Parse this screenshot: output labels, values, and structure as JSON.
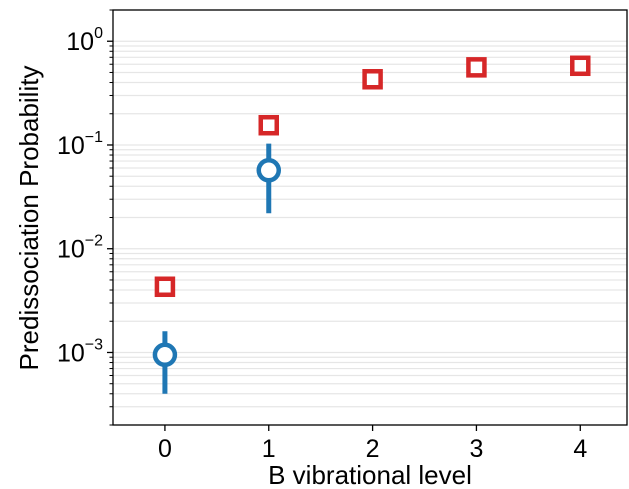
{
  "chart_data": {
    "type": "scatter",
    "title": "",
    "xlabel": "B vibrational level",
    "ylabel": "Predissociation Probability",
    "x_ticks": [
      "0",
      "1",
      "2",
      "3",
      "4"
    ],
    "xlim": [
      -0.5,
      4.45
    ],
    "y_scale": "log",
    "ylim": [
      0.0002,
      2.0
    ],
    "y_ticks": [
      {
        "base": "10",
        "exp": "0",
        "value": 1
      },
      {
        "base": "10",
        "exp": "−1",
        "value": 0.1
      },
      {
        "base": "10",
        "exp": "−2",
        "value": 0.01
      },
      {
        "base": "10",
        "exp": "−3",
        "value": 0.001
      }
    ],
    "grid": "horizontal minor lines",
    "legend": "none",
    "series": [
      {
        "marker": "square",
        "color": "#d62728",
        "points": [
          {
            "x": 0,
            "y": 0.0043
          },
          {
            "x": 1,
            "y": 0.155
          },
          {
            "x": 2,
            "y": 0.43
          },
          {
            "x": 3,
            "y": 0.56
          },
          {
            "x": 4,
            "y": 0.58
          }
        ]
      },
      {
        "marker": "circle",
        "color": "#1f77b4",
        "points": [
          {
            "x": 0,
            "y": 0.00095,
            "y_low": 0.0004,
            "y_high": 0.0016
          },
          {
            "x": 1,
            "y": 0.057,
            "y_low": 0.022,
            "y_high": 0.103
          }
        ]
      }
    ]
  }
}
